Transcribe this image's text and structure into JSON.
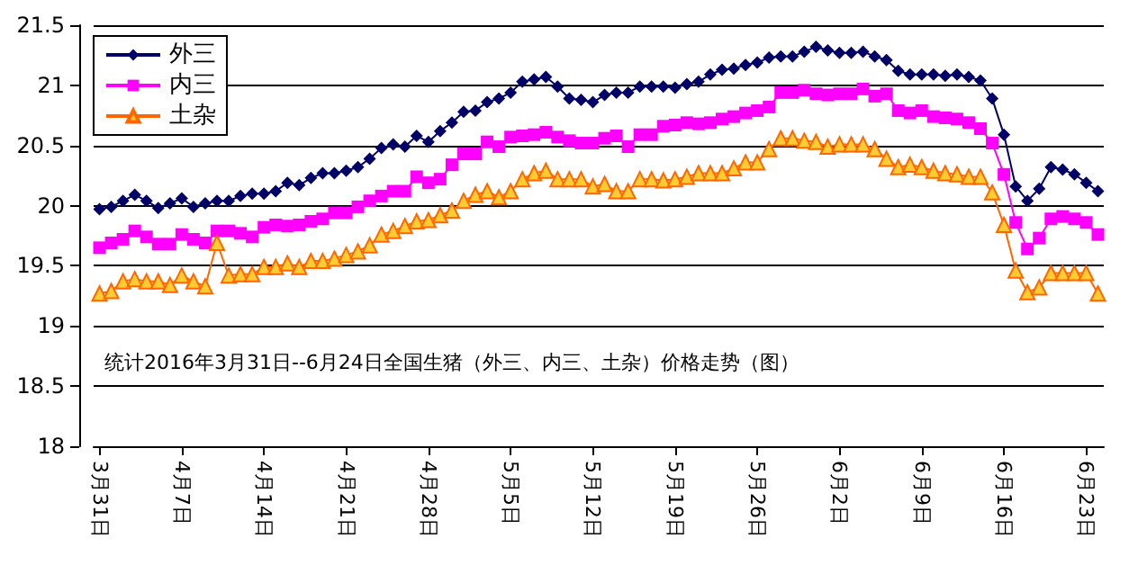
{
  "chart_data": {
    "type": "line",
    "categories": [
      "3月31日",
      null,
      null,
      null,
      null,
      null,
      null,
      "4月7日",
      null,
      null,
      null,
      null,
      null,
      null,
      "4月14日",
      null,
      null,
      null,
      null,
      null,
      null,
      "4月21日",
      null,
      null,
      null,
      null,
      null,
      null,
      "4月28日",
      null,
      null,
      null,
      null,
      null,
      null,
      "5月5日",
      null,
      null,
      null,
      null,
      null,
      null,
      "5月12日",
      null,
      null,
      null,
      null,
      null,
      null,
      "5月19日",
      null,
      null,
      null,
      null,
      null,
      null,
      "5月26日",
      null,
      null,
      null,
      null,
      null,
      null,
      "6月2日",
      null,
      null,
      null,
      null,
      null,
      null,
      "6月9日",
      null,
      null,
      null,
      null,
      null,
      null,
      "6月16日",
      null,
      null,
      null,
      null,
      null,
      null,
      "6月23日",
      null
    ],
    "series": [
      {
        "name": "外三",
        "color": "#000066",
        "marker": "diamond",
        "values": [
          19.97,
          19.99,
          20.04,
          20.09,
          20.04,
          19.98,
          20.02,
          20.06,
          19.99,
          20.02,
          20.04,
          20.04,
          20.08,
          20.1,
          20.1,
          20.12,
          20.19,
          20.17,
          20.23,
          20.27,
          20.27,
          20.29,
          20.32,
          20.39,
          20.48,
          20.51,
          20.49,
          20.58,
          20.53,
          20.62,
          20.69,
          20.78,
          20.79,
          20.86,
          20.89,
          20.94,
          21.03,
          21.05,
          21.07,
          20.99,
          20.89,
          20.88,
          20.86,
          20.92,
          20.94,
          20.94,
          20.99,
          20.99,
          20.99,
          20.98,
          21.01,
          21.03,
          21.09,
          21.13,
          21.14,
          21.17,
          21.19,
          21.23,
          21.24,
          21.24,
          21.28,
          21.32,
          21.29,
          21.27,
          21.27,
          21.28,
          21.24,
          21.21,
          21.12,
          21.09,
          21.09,
          21.09,
          21.08,
          21.09,
          21.07,
          21.04,
          20.89,
          20.59,
          20.16,
          20.04,
          20.14,
          20.32,
          20.3,
          20.26,
          20.19,
          20.12
        ]
      },
      {
        "name": "内三",
        "color": "#ff00ff",
        "marker": "square",
        "values": [
          19.65,
          19.69,
          19.72,
          19.79,
          19.74,
          19.68,
          19.68,
          19.76,
          19.72,
          19.69,
          19.79,
          19.79,
          19.77,
          19.74,
          19.82,
          19.84,
          19.83,
          19.84,
          19.87,
          19.89,
          19.94,
          19.94,
          19.99,
          20.04,
          20.08,
          20.12,
          20.12,
          20.24,
          20.19,
          20.22,
          20.34,
          20.43,
          20.43,
          20.53,
          20.49,
          20.57,
          20.58,
          20.59,
          20.61,
          20.57,
          20.54,
          20.52,
          20.52,
          20.56,
          20.58,
          20.49,
          20.59,
          20.59,
          20.66,
          20.67,
          20.69,
          20.68,
          20.69,
          20.72,
          20.74,
          20.77,
          20.79,
          20.82,
          20.94,
          20.94,
          20.96,
          20.93,
          20.92,
          20.93,
          20.93,
          20.97,
          20.91,
          20.93,
          20.79,
          20.77,
          20.79,
          20.74,
          20.73,
          20.72,
          20.69,
          20.64,
          20.52,
          20.26,
          19.86,
          19.64,
          19.73,
          19.89,
          19.91,
          19.89,
          19.86,
          19.76
        ]
      },
      {
        "name": "土杂",
        "color": "#ff6600",
        "marker": "triangle",
        "values": [
          19.27,
          19.29,
          19.37,
          19.39,
          19.37,
          19.37,
          19.34,
          19.42,
          19.37,
          19.33,
          19.69,
          19.42,
          19.43,
          19.43,
          19.49,
          19.49,
          19.52,
          19.49,
          19.54,
          19.54,
          19.56,
          19.59,
          19.62,
          19.67,
          19.76,
          19.79,
          19.83,
          19.87,
          19.88,
          19.92,
          19.96,
          20.04,
          20.09,
          20.12,
          20.07,
          20.12,
          20.22,
          20.27,
          20.29,
          20.22,
          20.22,
          20.22,
          20.16,
          20.18,
          20.12,
          20.12,
          20.22,
          20.22,
          20.21,
          20.22,
          20.24,
          20.27,
          20.27,
          20.27,
          20.31,
          20.36,
          20.36,
          20.47,
          20.56,
          20.56,
          20.54,
          20.53,
          20.49,
          20.51,
          20.51,
          20.51,
          20.47,
          20.39,
          20.32,
          20.34,
          20.32,
          20.29,
          20.27,
          20.26,
          20.24,
          20.24,
          20.11,
          19.84,
          19.46,
          19.28,
          19.32,
          19.44,
          19.44,
          19.44,
          19.44,
          19.27
        ]
      }
    ],
    "ylim": [
      18,
      21.5
    ],
    "yticks": [
      18,
      18.5,
      19,
      19.5,
      20,
      20.5,
      21,
      21.5
    ],
    "grid": "y",
    "legend": "top left",
    "annotations": [
      "统计2016年3月31日--6月24日全国生猪（外三、内三、土杂）价格走势（图）"
    ]
  }
}
